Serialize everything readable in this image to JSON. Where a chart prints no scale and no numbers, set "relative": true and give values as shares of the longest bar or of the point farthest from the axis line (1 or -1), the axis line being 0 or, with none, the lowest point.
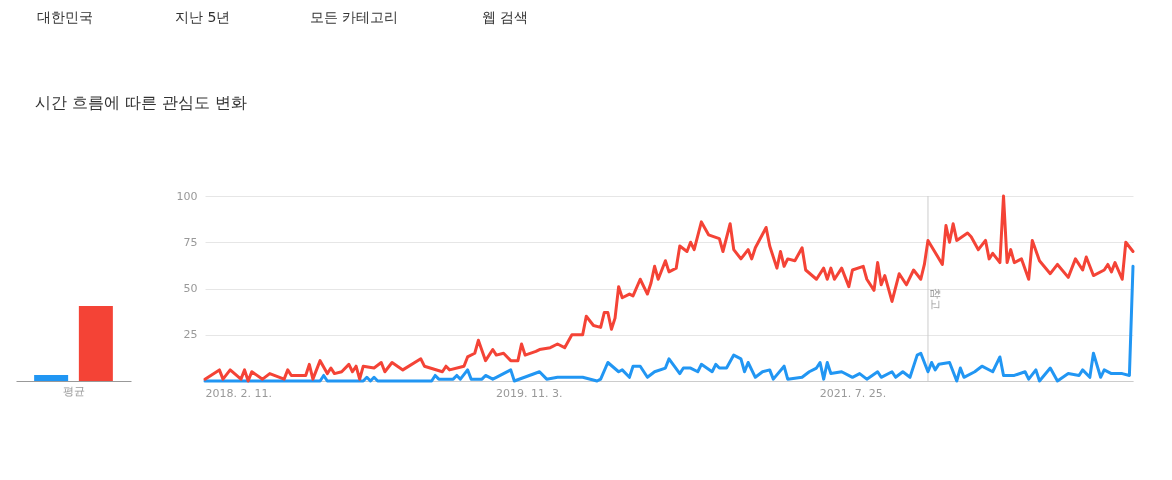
{
  "chart_data": [
    {
      "type": "bar",
      "title": "시간 흐름에 따른 관심도 변화",
      "annotations": [
        "대한민국",
        "지난 5년",
        "모든 카테고리",
        "웹 검색"
      ],
      "relative": true,
      "categories": [
        "평균"
      ],
      "series": [
        {
          "color": "#2196f3",
          "values": [
            0.08
          ]
        },
        {
          "color": "#f44336",
          "values": [
            1
          ]
        }
      ]
    },
    {
      "type": "line",
      "xlim": [
        "2018-02-11",
        "2023-01-22"
      ],
      "ylim": [
        0,
        100
      ],
      "grid": "y",
      "line_style": "solid",
      "xticks": [
        {
          "value": "2018-02-11",
          "label": "2018. 2. 11."
        },
        {
          "value": "2019-11-03",
          "label": "2019. 11. 3."
        },
        {
          "value": "2021-07-25",
          "label": "2021. 7. 25."
        }
      ],
      "yticks": [
        {
          "value": 0,
          "label": null
        },
        25,
        50,
        75,
        100
      ],
      "ref_lines": [
        {
          "axis": "x",
          "value": "2021-12-19",
          "label": "참고",
          "color": "#cccccc"
        }
      ],
      "series": [
        {
          "color": "#2196f3",
          "x": [
            "2018-02-11",
            "2018-09-23",
            "2018-09-30",
            "2018-10-07",
            "2018-12-16",
            "2018-12-23",
            "2018-12-30",
            "2019-01-06",
            "2019-01-13",
            "2019-04-28",
            "2019-05-05",
            "2019-05-12",
            "2019-06-09",
            "2019-06-16",
            "2019-06-23",
            "2019-07-07",
            "2019-07-14",
            "2019-08-04",
            "2019-08-11",
            "2019-08-25",
            "2019-09-01",
            "2019-09-29",
            "2019-10-06",
            "2019-11-24",
            "2019-12-08",
            "2019-12-29",
            "2020-02-16",
            "2020-03-15",
            "2020-03-22",
            "2020-04-05",
            "2020-04-26",
            "2020-05-03",
            "2020-05-17",
            "2020-05-24",
            "2020-06-07",
            "2020-06-21",
            "2020-07-05",
            "2020-07-26",
            "2020-08-02",
            "2020-08-23",
            "2020-08-30",
            "2020-09-13",
            "2020-09-27",
            "2020-10-04",
            "2020-10-25",
            "2020-11-01",
            "2020-11-08",
            "2020-11-22",
            "2020-12-06",
            "2020-12-20",
            "2020-12-27",
            "2021-01-03",
            "2021-01-17",
            "2021-01-31",
            "2021-02-14",
            "2021-02-21",
            "2021-03-14",
            "2021-03-21",
            "2021-04-18",
            "2021-05-02",
            "2021-05-16",
            "2021-05-23",
            "2021-05-30",
            "2021-06-06",
            "2021-06-13",
            "2021-07-04",
            "2021-07-25",
            "2021-08-08",
            "2021-08-22",
            "2021-09-12",
            "2021-09-19",
            "2021-10-10",
            "2021-10-17",
            "2021-10-31",
            "2021-11-14",
            "2021-11-28",
            "2021-12-05",
            "2021-12-19",
            "2021-12-26",
            "2022-01-02",
            "2022-01-09",
            "2022-01-30",
            "2022-02-13",
            "2022-02-20",
            "2022-02-27",
            "2022-03-20",
            "2022-04-03",
            "2022-04-24",
            "2022-05-08",
            "2022-05-15",
            "2022-06-05",
            "2022-06-26",
            "2022-07-03",
            "2022-07-17",
            "2022-07-24",
            "2022-08-14",
            "2022-08-28",
            "2022-09-18",
            "2022-10-09",
            "2022-10-16",
            "2022-10-30",
            "2022-11-06",
            "2022-11-20",
            "2022-11-27",
            "2022-12-11",
            "2023-01-01",
            "2023-01-15",
            "2023-01-22"
          ],
          "values": [
            0,
            0,
            3,
            0,
            0,
            2,
            0,
            2,
            0,
            0,
            3,
            1,
            1,
            3,
            1,
            6,
            1,
            1,
            3,
            1,
            2,
            6,
            0,
            5,
            1,
            2,
            2,
            0,
            1,
            10,
            5,
            6,
            2,
            8,
            8,
            2,
            5,
            7,
            12,
            4,
            7,
            7,
            5,
            9,
            5,
            9,
            7,
            7,
            14,
            12,
            5,
            10,
            2,
            5,
            6,
            1,
            8,
            1,
            2,
            5,
            7,
            10,
            1,
            10,
            4,
            5,
            2,
            4,
            1,
            5,
            2,
            5,
            2,
            5,
            2,
            14,
            15,
            5,
            10,
            6,
            9,
            10,
            0,
            7,
            2,
            5,
            8,
            5,
            13,
            3,
            3,
            5,
            1,
            6,
            0,
            7,
            0,
            4,
            3,
            6,
            2,
            15,
            2,
            6,
            4,
            4,
            3,
            62
          ]
        },
        {
          "color": "#f44336",
          "x": [
            "2018-02-11",
            "2018-03-11",
            "2018-03-18",
            "2018-04-01",
            "2018-04-22",
            "2018-04-29",
            "2018-05-06",
            "2018-05-13",
            "2018-06-03",
            "2018-06-17",
            "2018-07-15",
            "2018-07-22",
            "2018-07-29",
            "2018-08-26",
            "2018-09-02",
            "2018-09-09",
            "2018-09-23",
            "2018-10-07",
            "2018-10-14",
            "2018-10-21",
            "2018-11-04",
            "2018-11-18",
            "2018-11-25",
            "2018-12-02",
            "2018-12-09",
            "2018-12-16",
            "2019-01-06",
            "2019-01-20",
            "2019-01-27",
            "2019-02-10",
            "2019-03-03",
            "2019-04-07",
            "2019-04-14",
            "2019-05-19",
            "2019-05-26",
            "2019-06-02",
            "2019-06-30",
            "2019-07-07",
            "2019-07-21",
            "2019-07-28",
            "2019-08-11",
            "2019-08-25",
            "2019-09-01",
            "2019-09-15",
            "2019-09-29",
            "2019-10-13",
            "2019-10-20",
            "2019-10-27",
            "2019-11-17",
            "2019-11-24",
            "2019-12-15",
            "2019-12-29",
            "2020-01-12",
            "2020-01-26",
            "2020-02-16",
            "2020-02-23",
            "2020-03-08",
            "2020-03-22",
            "2020-03-29",
            "2020-04-05",
            "2020-04-12",
            "2020-04-19",
            "2020-04-26",
            "2020-05-03",
            "2020-05-17",
            "2020-05-24",
            "2020-06-07",
            "2020-06-21",
            "2020-06-28",
            "2020-07-05",
            "2020-07-12",
            "2020-07-26",
            "2020-08-02",
            "2020-08-16",
            "2020-08-23",
            "2020-09-06",
            "2020-09-13",
            "2020-09-20",
            "2020-10-04",
            "2020-10-18",
            "2020-11-08",
            "2020-11-15",
            "2020-11-29",
            "2020-12-06",
            "2020-12-20",
            "2021-01-03",
            "2021-01-10",
            "2021-01-17",
            "2021-02-07",
            "2021-02-14",
            "2021-02-28",
            "2021-03-07",
            "2021-03-14",
            "2021-03-21",
            "2021-04-04",
            "2021-04-18",
            "2021-04-25",
            "2021-05-16",
            "2021-05-30",
            "2021-06-06",
            "2021-06-13",
            "2021-06-20",
            "2021-07-04",
            "2021-07-18",
            "2021-07-25",
            "2021-08-15",
            "2021-08-22",
            "2021-09-05",
            "2021-09-12",
            "2021-09-19",
            "2021-09-26",
            "2021-10-10",
            "2021-10-24",
            "2021-11-07",
            "2021-11-21",
            "2021-12-05",
            "2021-12-12",
            "2021-12-19",
            "2022-01-16",
            "2022-01-23",
            "2022-01-30",
            "2022-02-06",
            "2022-02-13",
            "2022-03-06",
            "2022-03-13",
            "2022-03-27",
            "2022-04-10",
            "2022-04-17",
            "2022-04-24",
            "2022-05-08",
            "2022-05-15",
            "2022-05-22",
            "2022-05-29",
            "2022-06-05",
            "2022-06-19",
            "2022-07-03",
            "2022-07-10",
            "2022-07-24",
            "2022-08-14",
            "2022-08-28",
            "2022-09-18",
            "2022-10-02",
            "2022-10-16",
            "2022-10-23",
            "2022-11-06",
            "2022-11-27",
            "2022-12-04",
            "2022-12-11",
            "2022-12-18",
            "2023-01-01",
            "2023-01-08",
            "2023-01-22"
          ],
          "values": [
            1,
            6,
            1,
            6,
            1,
            6,
            0,
            5,
            1,
            4,
            1,
            6,
            3,
            3,
            9,
            1,
            11,
            4,
            7,
            4,
            5,
            9,
            5,
            8,
            1,
            8,
            7,
            10,
            5,
            10,
            6,
            12,
            8,
            5,
            8,
            6,
            8,
            13,
            15,
            22,
            11,
            17,
            14,
            15,
            11,
            11,
            20,
            14,
            16,
            17,
            18,
            20,
            18,
            25,
            25,
            35,
            30,
            29,
            37,
            37,
            28,
            34,
            51,
            45,
            47,
            46,
            55,
            47,
            53,
            62,
            55,
            65,
            59,
            61,
            73,
            70,
            75,
            71,
            86,
            79,
            77,
            70,
            85,
            71,
            66,
            71,
            66,
            72,
            83,
            73,
            61,
            70,
            62,
            66,
            65,
            72,
            60,
            55,
            61,
            55,
            61,
            55,
            61,
            51,
            60,
            62,
            55,
            49,
            64,
            52,
            57,
            43,
            58,
            52,
            60,
            55,
            63,
            76,
            63,
            84,
            75,
            85,
            76,
            80,
            78,
            71,
            76,
            66,
            69,
            64,
            100,
            64,
            71,
            64,
            66,
            55,
            76,
            65,
            58,
            63,
            56,
            66,
            60,
            67,
            57,
            60,
            63,
            59,
            64,
            55,
            75,
            70
          ]
        }
      ]
    }
  ]
}
